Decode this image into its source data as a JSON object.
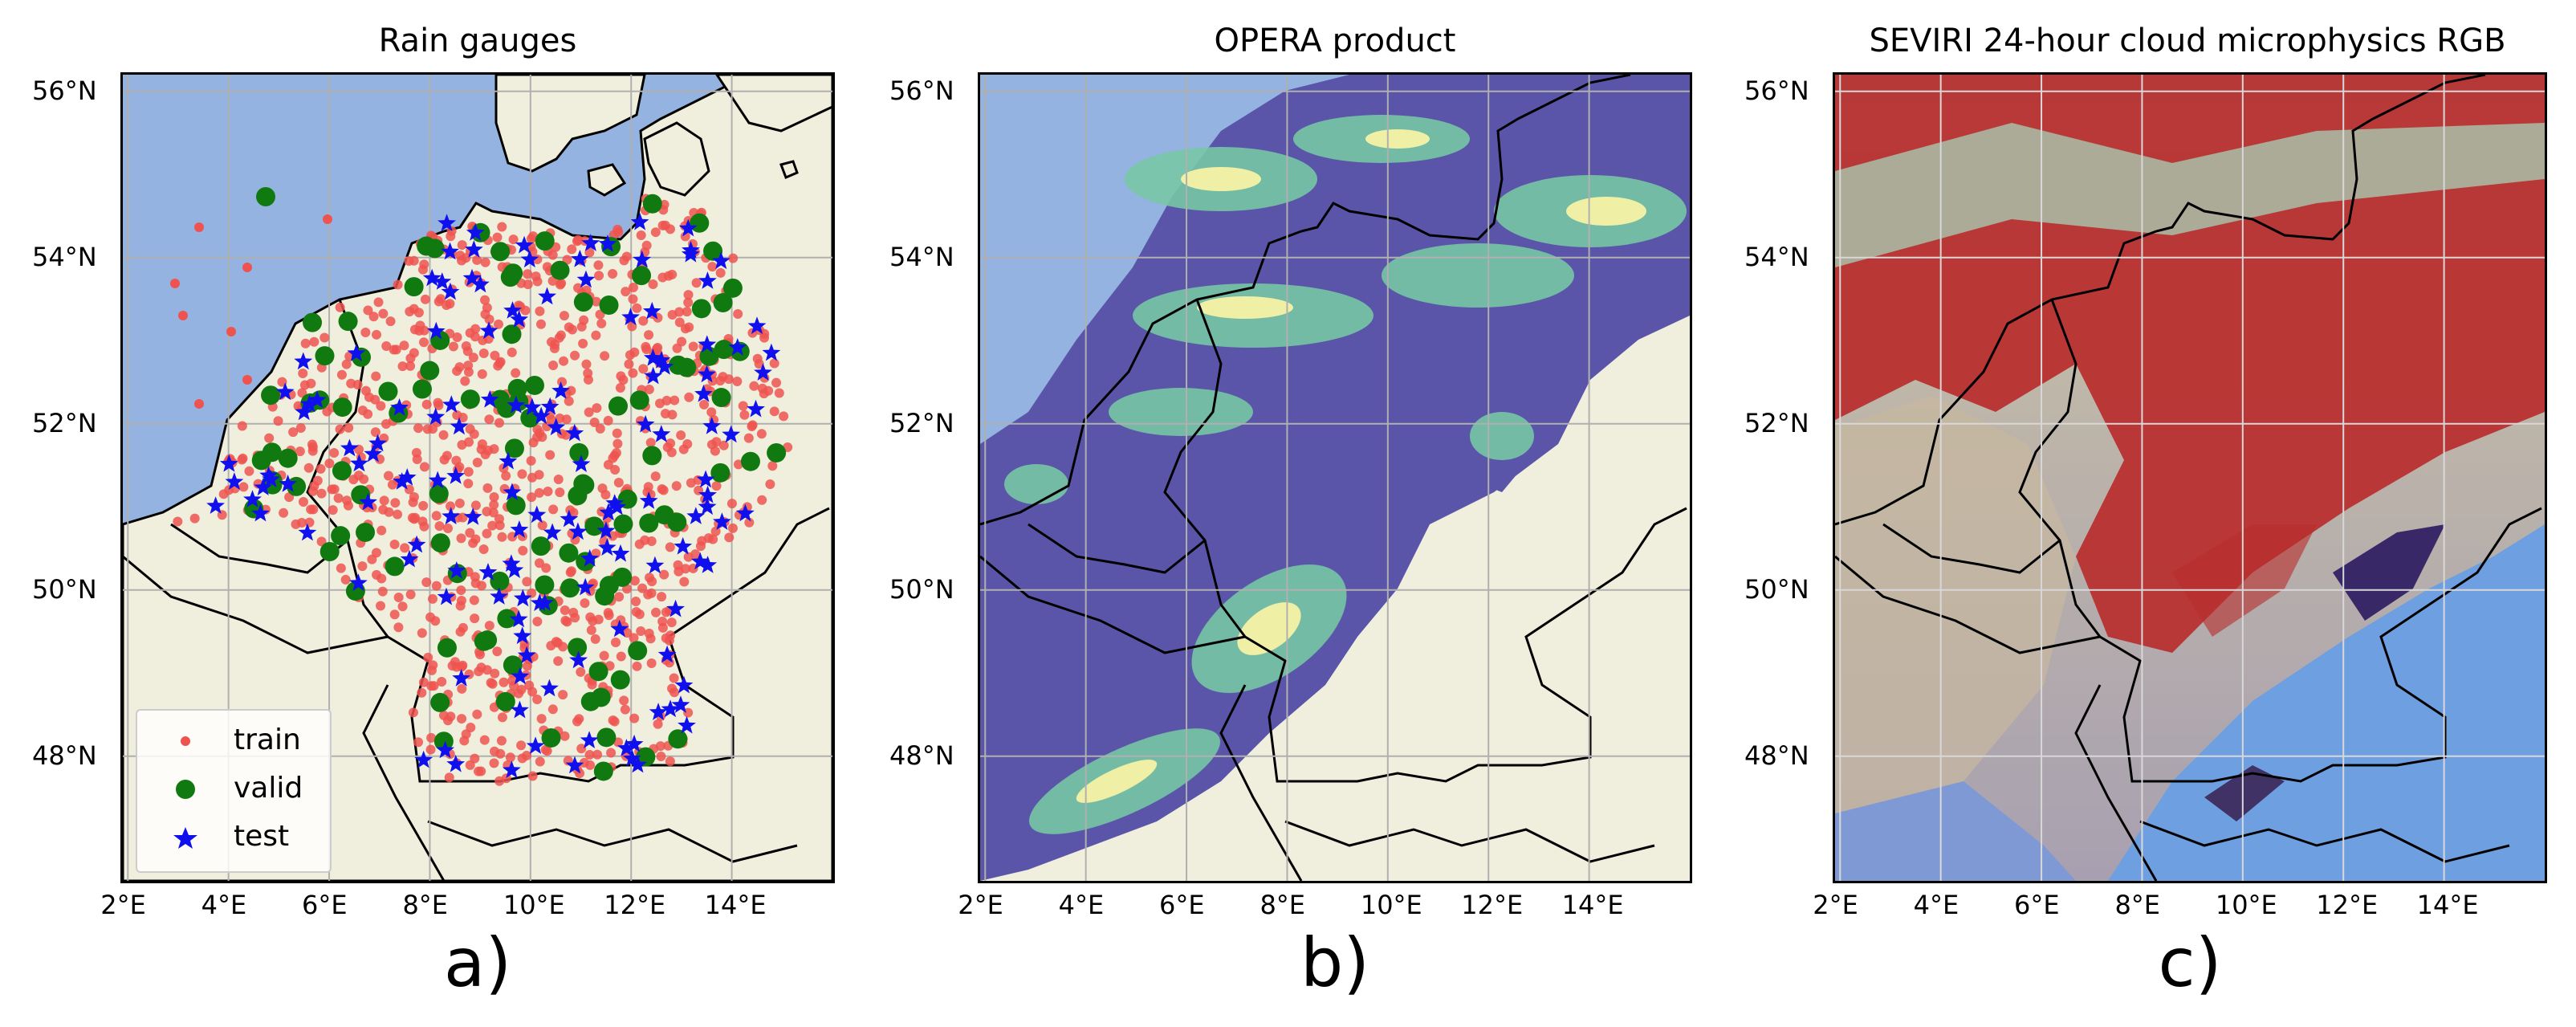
{
  "panels": [
    {
      "id": "a",
      "title": "Rain gauges",
      "letter": "a)",
      "legend": [
        {
          "label": "train",
          "marker": "circle-small",
          "color": "#ef5350"
        },
        {
          "label": "valid",
          "marker": "circle-large",
          "color": "#107a10"
        },
        {
          "label": "test",
          "marker": "star",
          "color": "#1010ee"
        }
      ]
    },
    {
      "id": "b",
      "title": "OPERA product",
      "letter": "b)"
    },
    {
      "id": "c",
      "title": "SEVIRI 24-hour cloud microphysics RGB",
      "letter": "c)"
    }
  ],
  "axes": {
    "x_ticks": [
      "2°E",
      "4°E",
      "6°E",
      "8°E",
      "10°E",
      "12°E",
      "14°E"
    ],
    "x_values": [
      2,
      4,
      6,
      8,
      10,
      12,
      14
    ],
    "y_ticks": [
      "56°N",
      "54°N",
      "52°N",
      "50°N",
      "48°N"
    ],
    "y_values": [
      56,
      54,
      52,
      50,
      48
    ],
    "lon_range": [
      1.9,
      16.0
    ],
    "lat_range": [
      46.5,
      56.2
    ]
  },
  "colors": {
    "sea": "#94b3e0",
    "land": "#f0eedc",
    "border": "#000000",
    "grid": "#b0b0b0",
    "radar_low": "#5a55a8",
    "radar_mid": "#78c8a6",
    "radar_high": "#f6f3a6",
    "rgb_red": "#b82c2c",
    "rgb_blue": "#6e9fe0",
    "rgb_cyan": "#a8c8b0"
  }
}
